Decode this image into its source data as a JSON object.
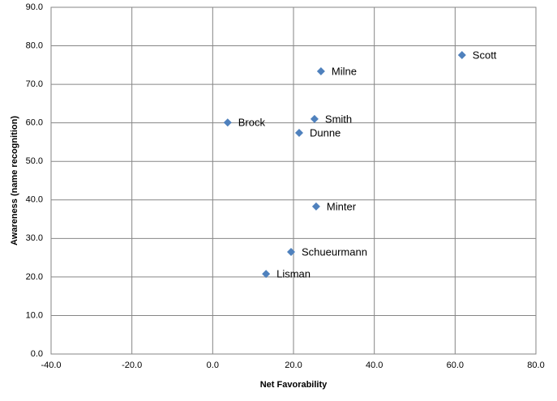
{
  "chart_data": {
    "type": "scatter",
    "x_label": "Net Favorability",
    "y_label": "Awareness (name recognition)",
    "series": [
      {
        "color": "#4f81bd",
        "labels": [
          "Scott",
          "Milne",
          "Smith",
          "Brock",
          "Dunne",
          "Minter",
          "Schueurmann",
          "Lisman"
        ],
        "x": [
          61.7,
          26.8,
          25.2,
          3.7,
          21.4,
          25.6,
          19.4,
          13.2
        ],
        "values": [
          77.6,
          73.4,
          61.0,
          60.1,
          57.4,
          38.3,
          26.5,
          20.8
        ]
      }
    ],
    "xlim": [
      -40,
      80
    ],
    "xticks": [
      {
        "value": -40,
        "label": "-40.0"
      },
      {
        "value": -20,
        "label": "-20.0"
      },
      {
        "value": 0,
        "label": "0.0"
      },
      {
        "value": 20,
        "label": "20.0"
      },
      {
        "value": 40,
        "label": "40.0"
      },
      {
        "value": 60,
        "label": "60.0"
      },
      {
        "value": 80,
        "label": "80.0"
      }
    ],
    "ylim": [
      0,
      90
    ],
    "yticks": [
      {
        "value": 0,
        "label": "0.0"
      },
      {
        "value": 10,
        "label": "10.0"
      },
      {
        "value": 20,
        "label": "20.0"
      },
      {
        "value": 30,
        "label": "30.0"
      },
      {
        "value": 40,
        "label": "40.0"
      },
      {
        "value": 50,
        "label": "50.0"
      },
      {
        "value": 60,
        "label": "60.0"
      },
      {
        "value": 70,
        "label": "70.0"
      },
      {
        "value": 80,
        "label": "80.0"
      },
      {
        "value": 90,
        "label": "90.0"
      }
    ],
    "grid": true
  }
}
